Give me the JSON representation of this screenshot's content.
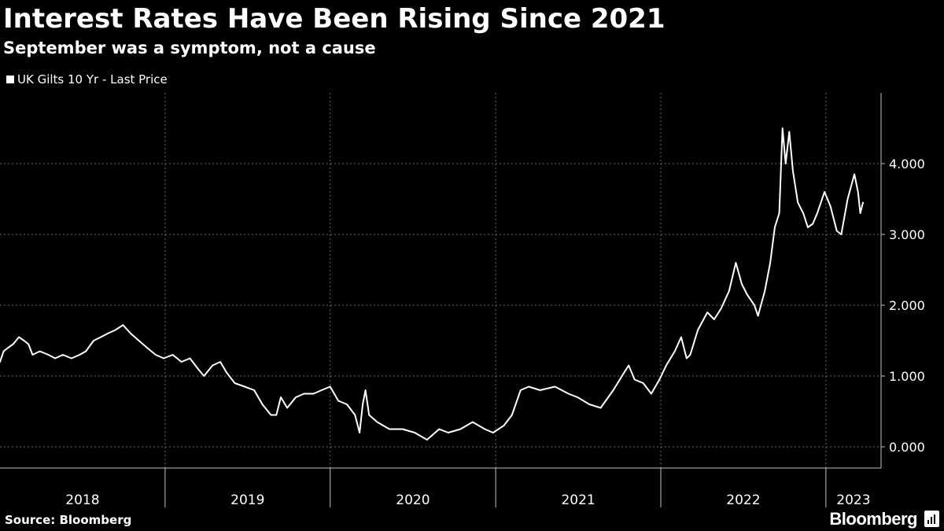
{
  "header": {
    "title": "Interest Rates Have Been Rising Since 2021",
    "subtitle": "September was a symptom, not a cause"
  },
  "legend": {
    "label": "UK Gilts 10 Yr - Last Price",
    "swatch_color": "#ffffff"
  },
  "footer": {
    "source": "Source: Bloomberg",
    "brand": "Bloomberg",
    "brand_icon": "bloomberg-terminal-icon"
  },
  "chart_data": {
    "type": "line",
    "title": "",
    "xlabel": "",
    "ylabel": "",
    "xlim": [
      "2018-01-01",
      "2023-03-24"
    ],
    "ylim": [
      -0.3,
      5.0
    ],
    "y_axis_side": "right",
    "y_ticks": [
      {
        "value": 0,
        "label": "0.000"
      },
      {
        "value": 1,
        "label": "1.000"
      },
      {
        "value": 2,
        "label": "2.000"
      },
      {
        "value": 3,
        "label": "3.000"
      },
      {
        "value": 4,
        "label": "4.000"
      }
    ],
    "x_ticks": [
      {
        "value": "2018-01-01",
        "label": "2018"
      },
      {
        "value": "2019-01-01",
        "label": "2019"
      },
      {
        "value": "2020-01-01",
        "label": "2020"
      },
      {
        "value": "2021-01-01",
        "label": "2021"
      },
      {
        "value": "2022-01-01",
        "label": "2022"
      },
      {
        "value": "2023-01-01",
        "label": "2023"
      }
    ],
    "grid": true,
    "line_color": "#ffffff",
    "series": [
      {
        "name": "UK Gilts 10 Yr - Last Price",
        "points": [
          [
            "2018-01-01",
            1.2
          ],
          [
            "2018-01-09",
            1.35
          ],
          [
            "2018-01-19",
            1.4
          ],
          [
            "2018-01-30",
            1.45
          ],
          [
            "2018-02-12",
            1.55
          ],
          [
            "2018-02-23",
            1.5
          ],
          [
            "2018-03-05",
            1.45
          ],
          [
            "2018-03-14",
            1.3
          ],
          [
            "2018-03-30",
            1.35
          ],
          [
            "2018-04-18",
            1.3
          ],
          [
            "2018-05-03",
            1.25
          ],
          [
            "2018-05-20",
            1.3
          ],
          [
            "2018-06-08",
            1.25
          ],
          [
            "2018-06-26",
            1.3
          ],
          [
            "2018-07-10",
            1.35
          ],
          [
            "2018-07-27",
            1.5
          ],
          [
            "2018-08-12",
            1.55
          ],
          [
            "2018-08-27",
            1.6
          ],
          [
            "2018-09-13",
            1.65
          ],
          [
            "2018-09-30",
            1.72
          ],
          [
            "2018-10-17",
            1.6
          ],
          [
            "2018-11-04",
            1.5
          ],
          [
            "2018-11-22",
            1.4
          ],
          [
            "2018-12-11",
            1.3
          ],
          [
            "2018-12-29",
            1.25
          ],
          [
            "2019-01-18",
            1.3
          ],
          [
            "2019-02-06",
            1.2
          ],
          [
            "2019-02-25",
            1.25
          ],
          [
            "2019-03-15",
            1.1
          ],
          [
            "2019-03-28",
            1.0
          ],
          [
            "2019-04-16",
            1.15
          ],
          [
            "2019-05-03",
            1.2
          ],
          [
            "2019-05-17",
            1.05
          ],
          [
            "2019-06-04",
            0.9
          ],
          [
            "2019-06-26",
            0.85
          ],
          [
            "2019-07-17",
            0.8
          ],
          [
            "2019-08-04",
            0.6
          ],
          [
            "2019-08-23",
            0.45
          ],
          [
            "2019-09-04",
            0.45
          ],
          [
            "2019-09-14",
            0.7
          ],
          [
            "2019-09-28",
            0.55
          ],
          [
            "2019-10-17",
            0.7
          ],
          [
            "2019-11-04",
            0.75
          ],
          [
            "2019-11-25",
            0.75
          ],
          [
            "2019-12-13",
            0.8
          ],
          [
            "2020-01-01",
            0.85
          ],
          [
            "2020-01-19",
            0.65
          ],
          [
            "2020-02-07",
            0.6
          ],
          [
            "2020-02-25",
            0.45
          ],
          [
            "2020-03-06",
            0.2
          ],
          [
            "2020-03-13",
            0.6
          ],
          [
            "2020-03-19",
            0.8
          ],
          [
            "2020-03-27",
            0.45
          ],
          [
            "2020-04-14",
            0.35
          ],
          [
            "2020-05-11",
            0.25
          ],
          [
            "2020-06-09",
            0.25
          ],
          [
            "2020-07-06",
            0.2
          ],
          [
            "2020-08-02",
            0.1
          ],
          [
            "2020-08-29",
            0.25
          ],
          [
            "2020-09-18",
            0.2
          ],
          [
            "2020-10-15",
            0.25
          ],
          [
            "2020-11-11",
            0.35
          ],
          [
            "2020-12-08",
            0.25
          ],
          [
            "2020-12-26",
            0.2
          ],
          [
            "2021-01-19",
            0.3
          ],
          [
            "2021-02-06",
            0.45
          ],
          [
            "2021-02-25",
            0.8
          ],
          [
            "2021-03-15",
            0.85
          ],
          [
            "2021-04-09",
            0.8
          ],
          [
            "2021-05-12",
            0.85
          ],
          [
            "2021-06-11",
            0.75
          ],
          [
            "2021-07-01",
            0.7
          ],
          [
            "2021-07-27",
            0.6
          ],
          [
            "2021-08-21",
            0.55
          ],
          [
            "2021-09-18",
            0.8
          ],
          [
            "2021-10-07",
            1.0
          ],
          [
            "2021-10-22",
            1.15
          ],
          [
            "2021-11-04",
            0.95
          ],
          [
            "2021-11-23",
            0.9
          ],
          [
            "2021-12-11",
            0.75
          ],
          [
            "2021-12-29",
            0.95
          ],
          [
            "2022-01-13",
            1.15
          ],
          [
            "2022-02-01",
            1.35
          ],
          [
            "2022-02-15",
            1.55
          ],
          [
            "2022-02-27",
            1.25
          ],
          [
            "2022-03-07",
            1.3
          ],
          [
            "2022-03-24",
            1.65
          ],
          [
            "2022-04-14",
            1.9
          ],
          [
            "2022-04-29",
            1.8
          ],
          [
            "2022-05-14",
            1.95
          ],
          [
            "2022-06-01",
            2.2
          ],
          [
            "2022-06-16",
            2.6
          ],
          [
            "2022-06-29",
            2.3
          ],
          [
            "2022-07-11",
            2.15
          ],
          [
            "2022-07-27",
            2.0
          ],
          [
            "2022-08-04",
            1.85
          ],
          [
            "2022-08-19",
            2.2
          ],
          [
            "2022-08-31",
            2.6
          ],
          [
            "2022-09-10",
            3.1
          ],
          [
            "2022-09-20",
            3.3
          ],
          [
            "2022-09-27",
            4.5
          ],
          [
            "2022-10-04",
            4.0
          ],
          [
            "2022-10-12",
            4.45
          ],
          [
            "2022-10-20",
            3.9
          ],
          [
            "2022-10-31",
            3.45
          ],
          [
            "2022-11-12",
            3.3
          ],
          [
            "2022-11-22",
            3.1
          ],
          [
            "2022-12-03",
            3.15
          ],
          [
            "2022-12-13",
            3.3
          ],
          [
            "2022-12-29",
            3.6
          ],
          [
            "2023-01-11",
            3.4
          ],
          [
            "2023-01-25",
            3.05
          ],
          [
            "2023-02-04",
            3.0
          ],
          [
            "2023-02-18",
            3.5
          ],
          [
            "2023-03-05",
            3.85
          ],
          [
            "2023-03-13",
            3.6
          ],
          [
            "2023-03-18",
            3.3
          ],
          [
            "2023-03-24",
            3.45
          ]
        ]
      }
    ]
  }
}
